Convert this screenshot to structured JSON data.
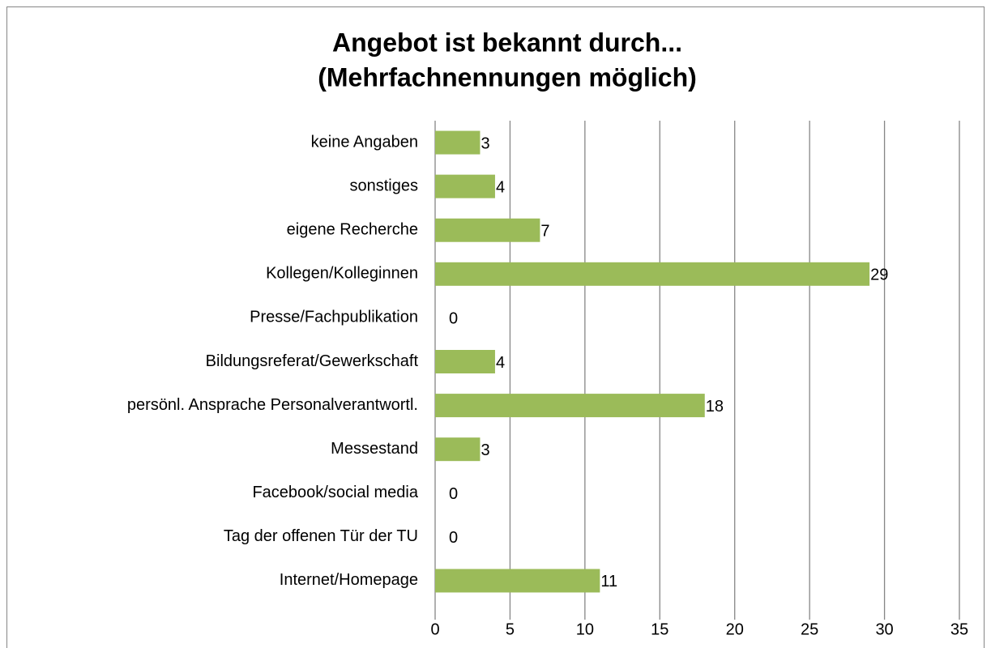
{
  "chart_data": {
    "type": "bar",
    "orientation": "horizontal",
    "title": [
      "Angebot ist bekannt durch...",
      "(Mehrfachnennungen möglich)"
    ],
    "categories": [
      "keine Angaben",
      "sonstiges",
      "eigene Recherche",
      "Kollegen/Kolleginnen",
      "Presse/Fachpublikation",
      "Bildungsreferat/Gewerkschaft",
      "persönl. Ansprache Personalverantwortl.",
      "Messestand",
      "Facebook/social media",
      "Tag der offenen Tür der TU",
      "Internet/Homepage"
    ],
    "values": [
      3,
      4,
      7,
      29,
      0,
      4,
      18,
      3,
      0,
      0,
      11
    ],
    "color": "#9bbb59",
    "xlim": [
      0,
      35
    ],
    "xticks": [
      0,
      5,
      10,
      15,
      20,
      25,
      30,
      35
    ],
    "grid": true
  }
}
